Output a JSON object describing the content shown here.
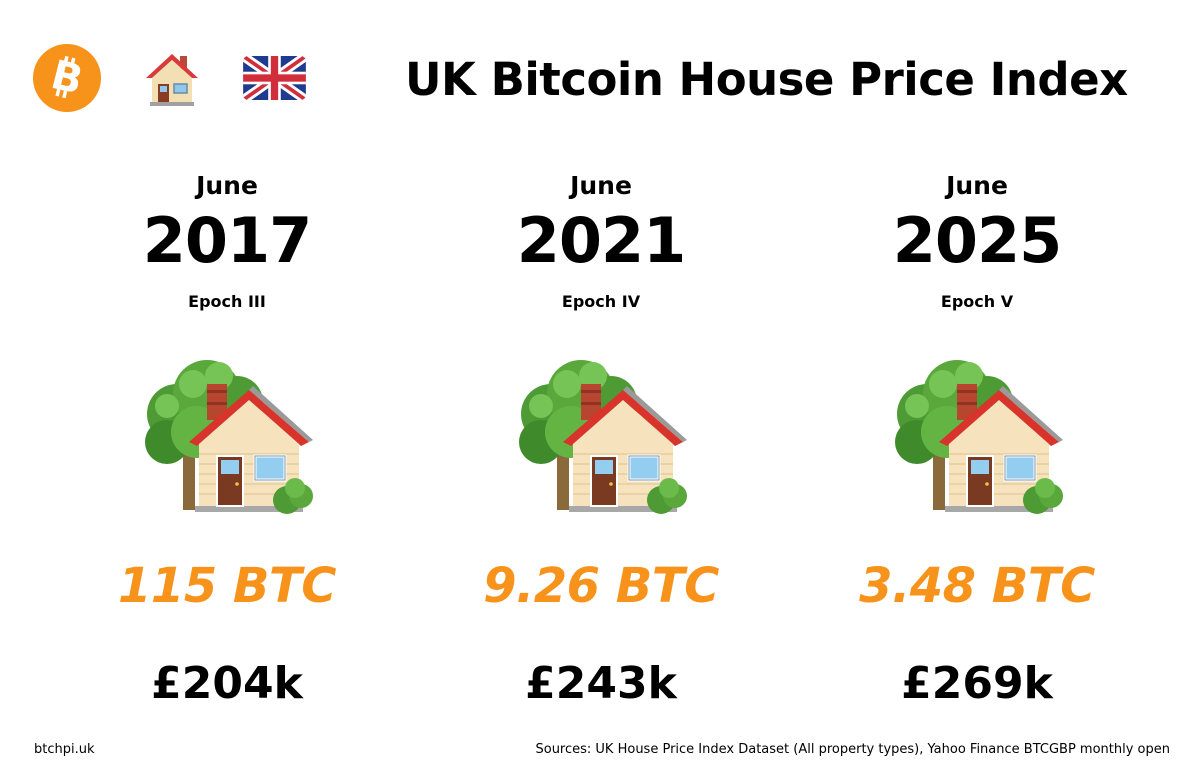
{
  "header": {
    "title": "UK Bitcoin House Price Index",
    "icons": [
      "bitcoin-logo-icon",
      "house-icon",
      "uk-flag-icon"
    ]
  },
  "colors": {
    "btc_orange": "#f7931a",
    "text": "#000000",
    "background": "#ffffff"
  },
  "columns": [
    {
      "month": "June",
      "year": "2017",
      "epoch": "Epoch III",
      "btc_price": "115 BTC",
      "gbp_price": "£204k",
      "icon": "house-with-tree-icon"
    },
    {
      "month": "June",
      "year": "2021",
      "epoch": "Epoch IV",
      "btc_price": "9.26 BTC",
      "gbp_price": "£243k",
      "icon": "house-with-tree-icon"
    },
    {
      "month": "June",
      "year": "2025",
      "epoch": "Epoch V",
      "btc_price": "3.48 BTC",
      "gbp_price": "£269k",
      "icon": "house-with-tree-icon"
    }
  ],
  "footer": {
    "site": "btchpi.uk",
    "sources": "Sources: UK House Price Index Dataset (All property types), Yahoo Finance BTCGBP monthly open"
  }
}
